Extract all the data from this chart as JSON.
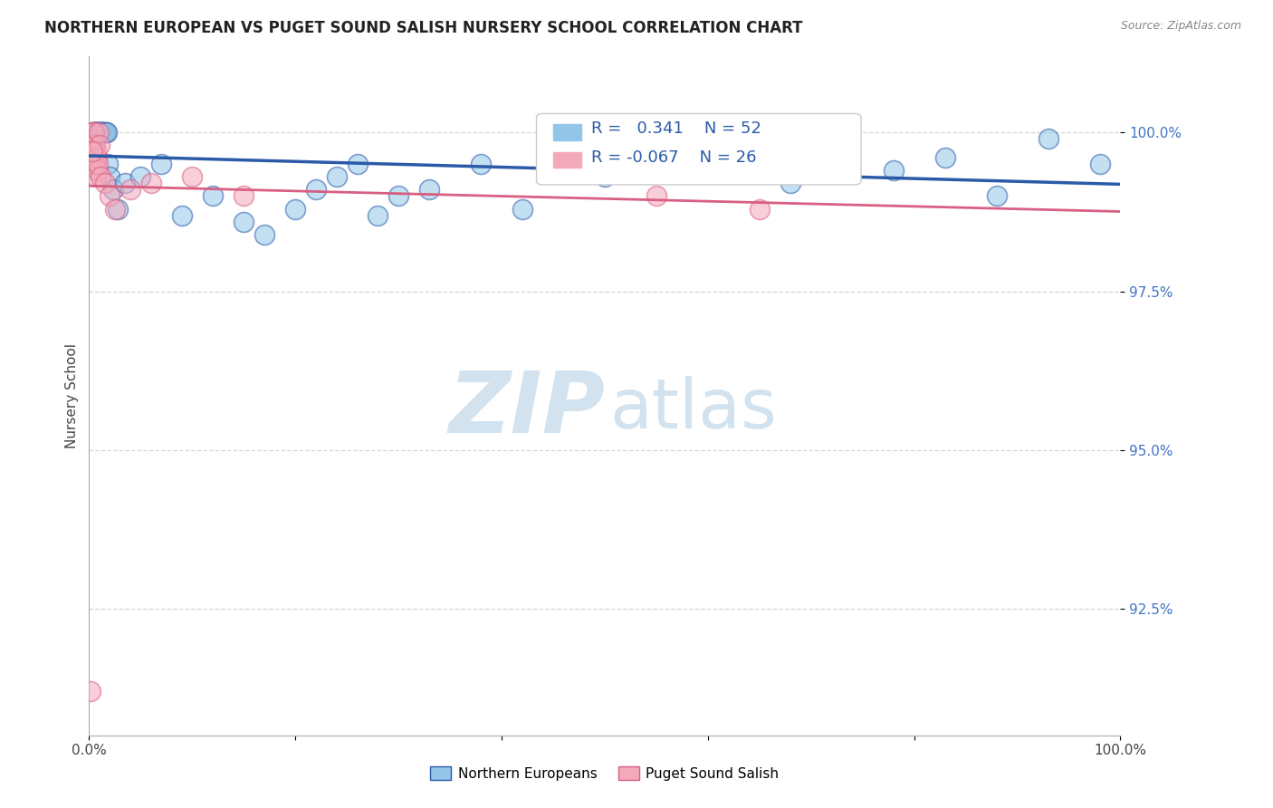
{
  "title": "NORTHERN EUROPEAN VS PUGET SOUND SALISH NURSERY SCHOOL CORRELATION CHART",
  "source_text": "Source: ZipAtlas.com",
  "ylabel": "Nursery School",
  "legend_label_blue": "Northern Europeans",
  "legend_label_pink": "Puget Sound Salish",
  "r_blue": 0.341,
  "n_blue": 52,
  "r_pink": -0.067,
  "n_pink": 26,
  "blue_color": "#92C5E8",
  "pink_color": "#F4A8BB",
  "blue_line_color": "#2B5BA8",
  "pink_line_color": "#D95F82",
  "background_color": "#FFFFFF",
  "grid_color": "#BBBBBB",
  "ytick_color": "#4472C4",
  "xlim": [
    0.0,
    100.0
  ],
  "ylim": [
    90.5,
    101.2
  ],
  "yticks": [
    92.5,
    95.0,
    97.5,
    100.0
  ],
  "ytick_labels": [
    "92.5%",
    "95.0%",
    "97.5%",
    "100.0%"
  ],
  "watermark_zip": "ZIP",
  "watermark_atlas": "atlas",
  "blue_x": [
    0.3,
    0.4,
    0.5,
    0.55,
    0.6,
    0.65,
    0.7,
    0.75,
    0.8,
    0.85,
    0.9,
    0.95,
    1.0,
    1.05,
    1.1,
    1.15,
    1.2,
    1.3,
    1.4,
    1.5,
    1.6,
    1.7,
    1.8,
    2.0,
    2.3,
    2.8,
    3.5,
    5.0,
    7.0,
    9.0,
    12.0,
    15.0,
    17.0,
    20.0,
    22.0,
    24.0,
    26.0,
    28.0,
    30.0,
    33.0,
    38.0,
    42.0,
    50.0,
    55.0,
    62.0,
    68.0,
    72.0,
    78.0,
    83.0,
    88.0,
    93.0,
    98.0
  ],
  "blue_y": [
    100.0,
    100.0,
    100.0,
    100.0,
    100.0,
    100.0,
    100.0,
    100.0,
    100.0,
    100.0,
    100.0,
    100.0,
    100.0,
    100.0,
    100.0,
    100.0,
    100.0,
    100.0,
    100.0,
    100.0,
    100.0,
    100.0,
    99.5,
    99.3,
    99.1,
    98.8,
    99.2,
    99.3,
    99.5,
    98.7,
    99.0,
    98.6,
    98.4,
    98.8,
    99.1,
    99.3,
    99.5,
    98.7,
    99.0,
    99.1,
    99.5,
    98.8,
    99.3,
    99.5,
    99.7,
    99.2,
    99.8,
    99.4,
    99.6,
    99.0,
    99.9,
    99.5
  ],
  "pink_x": [
    0.15,
    0.25,
    0.35,
    0.4,
    0.45,
    0.5,
    0.55,
    0.6,
    0.65,
    0.7,
    0.75,
    0.8,
    0.85,
    0.9,
    1.0,
    1.1,
    1.5,
    2.0,
    2.5,
    4.0,
    6.0,
    10.0,
    15.0,
    55.0,
    65.0,
    0.3
  ],
  "pink_y": [
    91.2,
    100.0,
    99.8,
    100.0,
    99.5,
    100.0,
    99.8,
    99.5,
    99.7,
    99.3,
    99.6,
    99.4,
    99.5,
    100.0,
    99.8,
    99.3,
    99.2,
    99.0,
    98.8,
    99.1,
    99.2,
    99.3,
    99.0,
    99.0,
    98.8,
    99.7
  ]
}
